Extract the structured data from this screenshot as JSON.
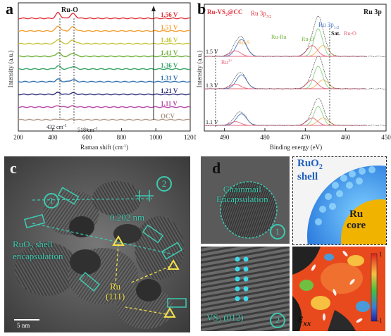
{
  "panel_labels": {
    "a": "a",
    "b": "b",
    "c": "c",
    "d": "d"
  },
  "colors": {
    "teal": "#3ec9b0",
    "yellow": "#f3e14a",
    "ru_s": "#f5b35a",
    "ru_ru": "#8ad08a",
    "ru_o": "#e8607a",
    "ru3p": "#4a78c8",
    "ru_core": "#f0b400",
    "shell": "#2f7fe0"
  },
  "panel_a": {
    "ylabel": "Intensity (a.u.)",
    "xlabel": "Raman shift (cm",
    "xlabel_sup": "-1",
    "xlabel_end": ")",
    "peak_label": "Ru-O",
    "peak1": "432 cm",
    "peak1_sup": "-1",
    "peak2": "518 cm",
    "peak2_sup": "-1",
    "xticks": [
      "200",
      "400",
      "600",
      "800",
      "1000",
      "1200"
    ]
  },
  "panel_b": {
    "title": "Ru 3p",
    "legend": "Ru-VS",
    "legend_sub": "2",
    "legend_end": "@CC",
    "ylabel": "Intensity (a.u.)",
    "xlabel": "Binding energy (eV)",
    "ru3p32": "Ru 3p",
    "ru3p32_sub": "3/2",
    "ru3p12": "Ru 3p",
    "ru3p12_sub": "1/2",
    "ru_s": "Ru-S",
    "ru_ru": "Ru-Ru",
    "ru_o_mid": "Ru-O",
    "ru_o_right": "Ru-O",
    "sat": "Sat.",
    "ru3plus": "Ru",
    "ru3plus_sup": "3+",
    "xticks": [
      "450",
      "460",
      "470",
      "480",
      "490"
    ]
  },
  "panel_c": {
    "spacing_label": "0.202 nm",
    "shell_label_line1": "RuO",
    "shell_label_sub": "2",
    "shell_label_line1_end": " shell",
    "shell_label_line2": "encapsulation",
    "plane_label_line1": "Ru",
    "plane_label_line2": "(111)",
    "scalebar": "5 nm",
    "marker_1": "1",
    "marker_2": "2"
  },
  "panel_d": {
    "chainmail_line1": "Chainmail",
    "chainmail_line2": "Encapsulation",
    "vs2_label": "VS",
    "vs2_sub": "2",
    "vs2_plane": " (012)",
    "shell_title": "RuO",
    "shell_sub": "2",
    "shell_word": "shell",
    "core_line1": "Ru",
    "core_line2": "core",
    "strain_symbol": "ε",
    "strain_sub": "xx",
    "colorbar_max": "1",
    "colorbar_min": "-1",
    "marker_1": "1",
    "marker_2": "2"
  },
  "chart_data": [
    {
      "type": "line",
      "title": "",
      "xlabel": "Raman shift (cm-1)",
      "ylabel": "Intensity (a.u.)",
      "xlim": [
        200,
        1200
      ],
      "xticks": [
        200,
        400,
        600,
        800,
        1000,
        1200
      ],
      "grid": false,
      "annotations": [
        "Ru-O",
        "432 cm-1",
        "518 cm-1"
      ],
      "peaks": [
        432,
        518
      ],
      "series": [
        {
          "name": "1.56 V",
          "color": "#e0303a"
        },
        {
          "name": "1.51 V",
          "color": "#f2a23a"
        },
        {
          "name": "1.46 V",
          "color": "#c6c43a"
        },
        {
          "name": "1.41 V",
          "color": "#6fb23a"
        },
        {
          "name": "1.36 V",
          "color": "#3aa66a"
        },
        {
          "name": "1.31 V",
          "color": "#2c6fb0"
        },
        {
          "name": "1.21 V",
          "color": "#2a2f7a"
        },
        {
          "name": "1.11 V",
          "color": "#b84aa8"
        },
        {
          "name": "OCV",
          "color": "#b09a8a"
        }
      ]
    },
    {
      "type": "line",
      "title": "Ru 3p",
      "xlabel": "Binding energy (eV)",
      "ylabel": "Intensity (a.u.)",
      "xlim": [
        495,
        450
      ],
      "xticks": [
        450,
        460,
        470,
        480,
        490
      ],
      "grid": false,
      "series": [
        {
          "name": "1.5 V"
        },
        {
          "name": "1.3 V"
        },
        {
          "name": "1.1 V"
        }
      ],
      "peak_positions": {
        "Ru 3p3/2": 466.8,
        "Ru 3p1/2": 485.8
      }
    }
  ]
}
